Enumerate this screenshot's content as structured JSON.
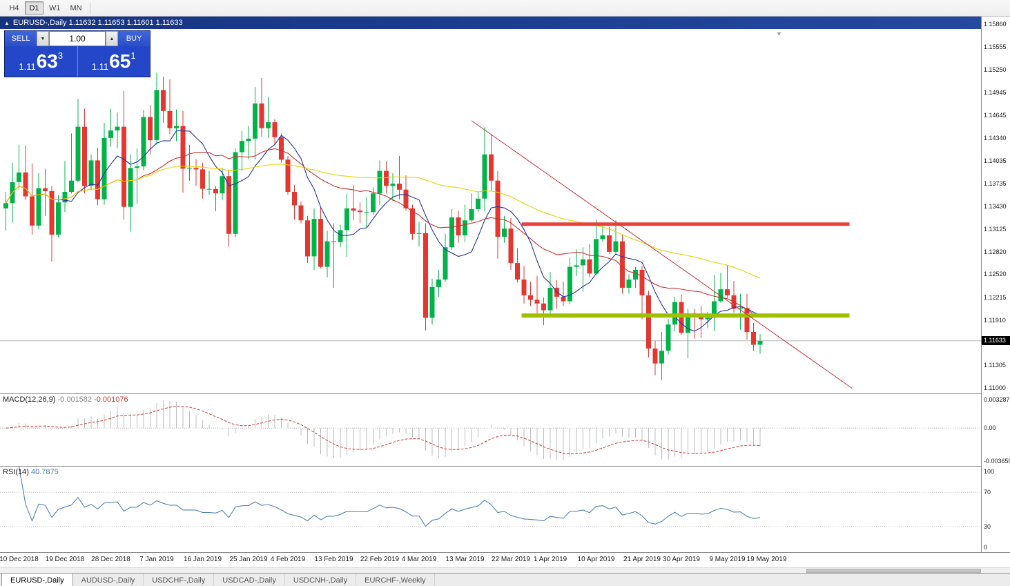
{
  "toolbar": {
    "timeframes": [
      {
        "label": "H4",
        "active": false
      },
      {
        "label": "D1",
        "active": true
      },
      {
        "label": "W1",
        "active": false
      },
      {
        "label": "MN",
        "active": false
      }
    ]
  },
  "chart_window": {
    "title_symbol": "EURUSD-,Daily",
    "open": "1.11632",
    "high": "1.11653",
    "low": "1.11601",
    "close": "1.11633"
  },
  "one_click_trading": {
    "sell_label": "SELL",
    "buy_label": "BUY",
    "volume": "1.00",
    "sell_price": {
      "prefix": "1.11",
      "big": "63",
      "sup": "3"
    },
    "buy_price": {
      "prefix": "1.11",
      "big": "65",
      "sup": "1"
    }
  },
  "price_axis": {
    "ticks": [
      "1.15860",
      "1.15555",
      "1.15250",
      "1.14945",
      "1.14645",
      "1.14340",
      "1.14035",
      "1.13735",
      "1.13430",
      "1.13125",
      "1.12820",
      "1.12520",
      "1.12215",
      "1.11910",
      "1.11305",
      "1.11000"
    ],
    "bid_label": "1.11633"
  },
  "macd_panel": {
    "name": "MACD(12,26,9)",
    "macd_value": "-0.001582",
    "signal_value": "-0.001076",
    "axis_top": "0.003287",
    "axis_zero": "0.00",
    "axis_bottom": "-0.003659"
  },
  "rsi_panel": {
    "name": "RSI(14)",
    "value": "40.7875",
    "axis_top": "100",
    "axis_70": "70",
    "axis_30": "30",
    "axis_bottom": "0"
  },
  "date_axis": {
    "labels": [
      {
        "text": "10 Dec 2018",
        "index": 2
      },
      {
        "text": "19 Dec 2018",
        "index": 9
      },
      {
        "text": "28 Dec 2018",
        "index": 16
      },
      {
        "text": "7 Jan 2019",
        "index": 23
      },
      {
        "text": "16 Jan 2019",
        "index": 30
      },
      {
        "text": "25 Jan 2019",
        "index": 37
      },
      {
        "text": "4 Feb 2019",
        "index": 43
      },
      {
        "text": "13 Feb 2019",
        "index": 50
      },
      {
        "text": "22 Feb 2019",
        "index": 57
      },
      {
        "text": "4 Mar 2019",
        "index": 63
      },
      {
        "text": "13 Mar 2019",
        "index": 70
      },
      {
        "text": "22 Mar 2019",
        "index": 77
      },
      {
        "text": "1 Apr 2019",
        "index": 83
      },
      {
        "text": "10 Apr 2019",
        "index": 90
      },
      {
        "text": "21 Apr 2019",
        "index": 97
      },
      {
        "text": "30 Apr 2019",
        "index": 103
      },
      {
        "text": "9 May 2019",
        "index": 110
      },
      {
        "text": "19 May 2019",
        "index": 116
      }
    ]
  },
  "tabs": [
    {
      "label": "EURUSD-,Daily",
      "active": true
    },
    {
      "label": "AUDUSD-,Daily",
      "active": false
    },
    {
      "label": "USDCHF-,Daily",
      "active": false
    },
    {
      "label": "USDCAD-,Daily",
      "active": false
    },
    {
      "label": "USDCNH-,Daily",
      "active": false
    },
    {
      "label": "EURCHF-,Weekly",
      "active": false
    }
  ],
  "chart_data": {
    "type": "candlestick",
    "symbol": "EURUSD-",
    "timeframe": "Daily",
    "bid": 1.11633,
    "price_range": {
      "top": 1.1596,
      "bottom": 1.1093
    },
    "up_color": "#00b44a",
    "down_color": "#e63630",
    "ohlc": [
      [
        1.134,
        1.1362,
        1.131,
        1.1347
      ],
      [
        1.1347,
        1.1401,
        1.1321,
        1.1375
      ],
      [
        1.1375,
        1.1425,
        1.1365,
        1.1388
      ],
      [
        1.1388,
        1.1424,
        1.1351,
        1.1356
      ],
      [
        1.1356,
        1.14,
        1.1305,
        1.1317
      ],
      [
        1.1317,
        1.1387,
        1.1312,
        1.1367
      ],
      [
        1.1367,
        1.1393,
        1.133,
        1.1363
      ],
      [
        1.1363,
        1.137,
        1.1269,
        1.1305
      ],
      [
        1.1305,
        1.1358,
        1.1301,
        1.1348
      ],
      [
        1.1348,
        1.1403,
        1.1335,
        1.1362
      ],
      [
        1.1362,
        1.144,
        1.136,
        1.1377
      ],
      [
        1.1377,
        1.1486,
        1.1375,
        1.1449
      ],
      [
        1.1449,
        1.1473,
        1.136,
        1.137
      ],
      [
        1.137,
        1.1412,
        1.1364,
        1.1404
      ],
      [
        1.1404,
        1.1421,
        1.1344,
        1.1352
      ],
      [
        1.1352,
        1.1454,
        1.1345,
        1.1434
      ],
      [
        1.1434,
        1.1473,
        1.1422,
        1.1444
      ],
      [
        1.1444,
        1.1468,
        1.142,
        1.1449
      ],
      [
        1.1449,
        1.1497,
        1.1325,
        1.1342
      ],
      [
        1.1342,
        1.1412,
        1.1309,
        1.1394
      ],
      [
        1.1394,
        1.142,
        1.1346,
        1.1396
      ],
      [
        1.1396,
        1.1471,
        1.1391,
        1.1462
      ],
      [
        1.1462,
        1.1478,
        1.1412,
        1.1431
      ],
      [
        1.1431,
        1.1521,
        1.1425,
        1.1498
      ],
      [
        1.1498,
        1.1516,
        1.1454,
        1.147
      ],
      [
        1.147,
        1.1512,
        1.1439,
        1.1447
      ],
      [
        1.1447,
        1.1472,
        1.143,
        1.145
      ],
      [
        1.145,
        1.147,
        1.1361,
        1.1393
      ],
      [
        1.1393,
        1.1425,
        1.1377,
        1.1394
      ],
      [
        1.1394,
        1.1406,
        1.137,
        1.1392
      ],
      [
        1.1392,
        1.1401,
        1.1353,
        1.1366
      ],
      [
        1.1366,
        1.139,
        1.1358,
        1.1366
      ],
      [
        1.1366,
        1.137,
        1.1336,
        1.136
      ],
      [
        1.136,
        1.1394,
        1.1351,
        1.1383
      ],
      [
        1.1383,
        1.1392,
        1.1289,
        1.1306
      ],
      [
        1.1306,
        1.142,
        1.1301,
        1.1415
      ],
      [
        1.1415,
        1.1443,
        1.139,
        1.143
      ],
      [
        1.143,
        1.145,
        1.1406,
        1.1433
      ],
      [
        1.1433,
        1.1502,
        1.1405,
        1.148
      ],
      [
        1.148,
        1.1514,
        1.1435,
        1.1447
      ],
      [
        1.1447,
        1.1489,
        1.1434,
        1.1455
      ],
      [
        1.1455,
        1.1459,
        1.1425,
        1.1435
      ],
      [
        1.1435,
        1.144,
        1.1401,
        1.1405
      ],
      [
        1.1405,
        1.141,
        1.1358,
        1.1362
      ],
      [
        1.1362,
        1.1371,
        1.1325,
        1.1344
      ],
      [
        1.1344,
        1.1349,
        1.132,
        1.1324
      ],
      [
        1.1324,
        1.133,
        1.1267,
        1.1276
      ],
      [
        1.1276,
        1.134,
        1.1258,
        1.1326
      ],
      [
        1.1326,
        1.1341,
        1.126,
        1.1262
      ],
      [
        1.1262,
        1.131,
        1.1248,
        1.1296
      ],
      [
        1.1296,
        1.132,
        1.1234,
        1.1295
      ],
      [
        1.1295,
        1.1318,
        1.1288,
        1.1311
      ],
      [
        1.1311,
        1.1359,
        1.1275,
        1.134
      ],
      [
        1.134,
        1.1371,
        1.1324,
        1.1337
      ],
      [
        1.1337,
        1.1348,
        1.132,
        1.1335
      ],
      [
        1.1335,
        1.1355,
        1.1315,
        1.1335
      ],
      [
        1.1335,
        1.1368,
        1.1331,
        1.136
      ],
      [
        1.136,
        1.1404,
        1.1345,
        1.139
      ],
      [
        1.139,
        1.1403,
        1.136,
        1.137
      ],
      [
        1.137,
        1.1387,
        1.135,
        1.1373
      ],
      [
        1.1373,
        1.141,
        1.1352,
        1.1365
      ],
      [
        1.1365,
        1.1384,
        1.1337,
        1.134
      ],
      [
        1.134,
        1.1345,
        1.1298,
        1.1306
      ],
      [
        1.1306,
        1.1322,
        1.1289,
        1.1307
      ],
      [
        1.1307,
        1.132,
        1.1177,
        1.1194
      ],
      [
        1.1194,
        1.1246,
        1.1185,
        1.1235
      ],
      [
        1.1235,
        1.1258,
        1.1222,
        1.1245
      ],
      [
        1.1245,
        1.1306,
        1.1242,
        1.1288
      ],
      [
        1.1288,
        1.1339,
        1.1285,
        1.1328
      ],
      [
        1.1328,
        1.1337,
        1.1294,
        1.1304
      ],
      [
        1.1304,
        1.1345,
        1.1295,
        1.1324
      ],
      [
        1.1324,
        1.136,
        1.1322,
        1.1339
      ],
      [
        1.1339,
        1.1362,
        1.1335,
        1.1353
      ],
      [
        1.1353,
        1.1448,
        1.1336,
        1.1412
      ],
      [
        1.1412,
        1.1438,
        1.1363,
        1.1377
      ],
      [
        1.1377,
        1.139,
        1.1273,
        1.1302
      ],
      [
        1.1302,
        1.133,
        1.1294,
        1.1313
      ],
      [
        1.1313,
        1.1327,
        1.1258,
        1.1267
      ],
      [
        1.1267,
        1.1287,
        1.1241,
        1.1245
      ],
      [
        1.1245,
        1.1263,
        1.1213,
        1.1224
      ],
      [
        1.1224,
        1.1242,
        1.121,
        1.1218
      ],
      [
        1.1218,
        1.125,
        1.1199,
        1.1213
      ],
      [
        1.1213,
        1.1221,
        1.1184,
        1.1204
      ],
      [
        1.1204,
        1.1255,
        1.12,
        1.1234
      ],
      [
        1.1234,
        1.1244,
        1.1206,
        1.1222
      ],
      [
        1.1222,
        1.1242,
        1.121,
        1.1216
      ],
      [
        1.1216,
        1.1274,
        1.1212,
        1.1262
      ],
      [
        1.1262,
        1.1285,
        1.125,
        1.1264
      ],
      [
        1.1264,
        1.1288,
        1.1229,
        1.1272
      ],
      [
        1.1272,
        1.1292,
        1.1248,
        1.1253
      ],
      [
        1.1253,
        1.1325,
        1.1251,
        1.1299
      ],
      [
        1.1299,
        1.132,
        1.1295,
        1.1304
      ],
      [
        1.1304,
        1.1315,
        1.1279,
        1.1282
      ],
      [
        1.1282,
        1.1324,
        1.1278,
        1.1296
      ],
      [
        1.1296,
        1.1305,
        1.1226,
        1.1234
      ],
      [
        1.1234,
        1.1252,
        1.1226,
        1.1245
      ],
      [
        1.1245,
        1.1262,
        1.1234,
        1.1258
      ],
      [
        1.1258,
        1.1263,
        1.1192,
        1.1224
      ],
      [
        1.1224,
        1.123,
        1.1141,
        1.1153
      ],
      [
        1.1153,
        1.1163,
        1.1117,
        1.1133
      ],
      [
        1.1133,
        1.1175,
        1.1111,
        1.115
      ],
      [
        1.115,
        1.1192,
        1.1145,
        1.1185
      ],
      [
        1.1185,
        1.1222,
        1.1176,
        1.1215
      ],
      [
        1.1215,
        1.1225,
        1.1171,
        1.1174
      ],
      [
        1.1174,
        1.1206,
        1.114,
        1.12
      ],
      [
        1.12,
        1.1206,
        1.1166,
        1.1199
      ],
      [
        1.1199,
        1.121,
        1.1167,
        1.1192
      ],
      [
        1.1192,
        1.1202,
        1.118,
        1.1194
      ],
      [
        1.1194,
        1.1251,
        1.1176,
        1.1216
      ],
      [
        1.1216,
        1.1254,
        1.1214,
        1.1232
      ],
      [
        1.1232,
        1.1264,
        1.1221,
        1.1224
      ],
      [
        1.1224,
        1.1243,
        1.1201,
        1.1206
      ],
      [
        1.1206,
        1.1226,
        1.1178,
        1.1207
      ],
      [
        1.1207,
        1.1226,
        1.1165,
        1.1175
      ],
      [
        1.1175,
        1.1187,
        1.115,
        1.1158
      ],
      [
        1.1158,
        1.1172,
        1.1146,
        1.1163
      ]
    ],
    "moving_averages": [
      {
        "type": "sma",
        "period": 8,
        "color": "#2230a8"
      },
      {
        "type": "sma",
        "period": 21,
        "color": "#cc3030"
      },
      {
        "type": "sma",
        "period": 55,
        "color": "#e8d400"
      }
    ],
    "objects": [
      {
        "kind": "hline_thick",
        "name": "resistance",
        "price": 1.1319,
        "from_index": 79,
        "to_index": 129,
        "color": "#e8423c",
        "width": 5
      },
      {
        "kind": "hline_thick",
        "name": "support",
        "price": 1.1197,
        "from_index": 79,
        "to_index": 129,
        "color": "#9fc000",
        "width": 6
      },
      {
        "kind": "trendline",
        "name": "descending-trendline",
        "from_index": 71,
        "from_price": 1.1457,
        "to_index": 129,
        "to_price": 1.11,
        "color": "#cc3030",
        "width": 1
      }
    ],
    "macd": {
      "fast": 12,
      "slow": 26,
      "signal": 9,
      "scale_max": 0.003287,
      "scale_min": -0.003659,
      "histogram_color": "#bdbdbd",
      "signal_color": "#d23b36"
    },
    "rsi": {
      "period": 14,
      "scale_min": 0,
      "scale_max": 100,
      "levels": [
        70,
        30
      ],
      "line_color": "#4f81bd"
    }
  }
}
